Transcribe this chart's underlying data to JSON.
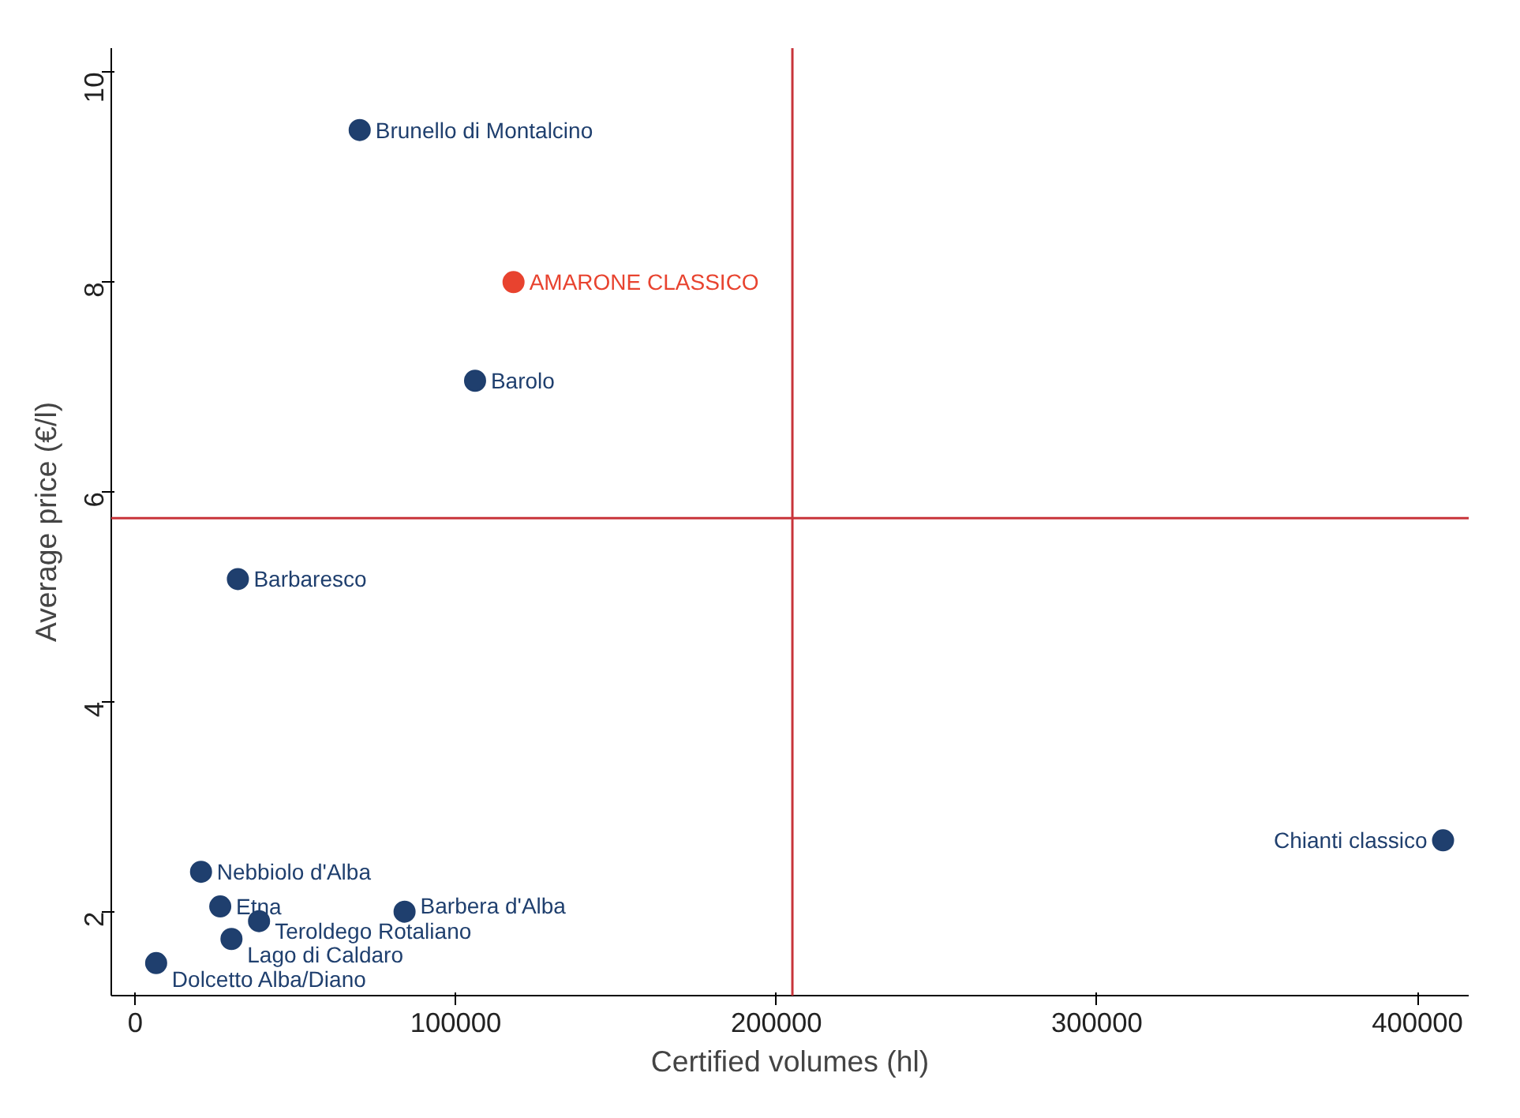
{
  "chart_data": {
    "type": "scatter",
    "xlabel": "Certified volumes (hl)",
    "ylabel": "Average price (€/l)",
    "x": [
      70000,
      118000,
      106000,
      32000,
      408000,
      20500,
      26500,
      38600,
      84000,
      30000,
      6500
    ],
    "values": [
      9.45,
      8.0,
      7.06,
      5.17,
      2.68,
      2.38,
      2.05,
      1.91,
      2.0,
      1.74,
      1.51
    ],
    "colors": [
      "#1f3f6e",
      "#e8432f",
      "#1f3f6e",
      "#1f3f6e",
      "#1f3f6e",
      "#1f3f6e",
      "#1f3f6e",
      "#1f3f6e",
      "#1f3f6e",
      "#1f3f6e",
      "#1f3f6e"
    ],
    "annotations": [
      {
        "text": "Brunello di Montalcino",
        "x": 70000,
        "y": 9.45
      },
      {
        "text": "AMARONE CLASSICO",
        "x": 118000,
        "y": 8.0
      },
      {
        "text": "Barolo",
        "x": 106000,
        "y": 7.06
      },
      {
        "text": "Barbaresco",
        "x": 32000,
        "y": 5.17
      },
      {
        "text": "Chianti classico",
        "x": 408000,
        "y": 2.68
      },
      {
        "text": "Nebbiolo d'Alba",
        "x": 20500,
        "y": 2.38
      },
      {
        "text": "Etna",
        "x": 26500,
        "y": 2.05
      },
      {
        "text": "Teroldego Rotaliano",
        "x": 38600,
        "y": 1.91
      },
      {
        "text": "Barbera d'Alba",
        "x": 84000,
        "y": 2.0
      },
      {
        "text": "Lago di Caldaro",
        "x": 30000,
        "y": 1.74
      },
      {
        "text": "Dolcetto Alba/Diano",
        "x": 6500,
        "y": 1.51
      }
    ],
    "ref_lines": [
      {
        "axis": "x",
        "value": 205000,
        "color": "#c8343a"
      },
      {
        "axis": "y",
        "value": 5.75,
        "color": "#c8343a"
      }
    ],
    "xlim": [
      -7500,
      416000
    ],
    "ylim": [
      1.2,
      10.23
    ],
    "xticks": [
      0,
      100000,
      200000,
      300000,
      400000
    ],
    "yticks": [
      2,
      4,
      6,
      8,
      10
    ],
    "marker": "circle",
    "grid": false
  }
}
